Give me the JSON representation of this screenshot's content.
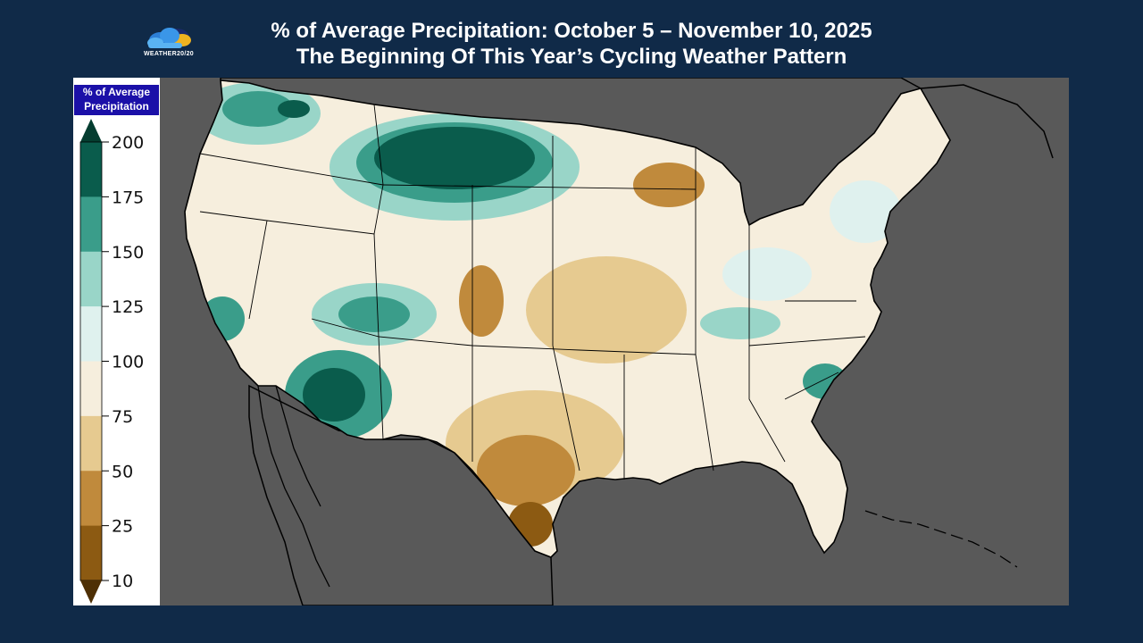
{
  "header": {
    "title_line1": "% of Average Precipitation: October 5 – November 10, 2025",
    "title_line2": "The Beginning Of This Year’s Cycling Weather Pattern",
    "logo_text": "WEATHER20/20"
  },
  "legend": {
    "title_line1": "% of Average",
    "title_line2": "Precipitation",
    "ticks": [
      "200",
      "175",
      "150",
      "125",
      "100",
      "75",
      "50",
      "25",
      "10"
    ],
    "colors": [
      "#0a5c4c",
      "#3a9d8a",
      "#99d5c8",
      "#dff1ee",
      "#f6eedd",
      "#e6ca90",
      "#c08a3c",
      "#8c5a12"
    ],
    "top_arrow_color": "#053d30",
    "bottom_arrow_color": "#4e2f05"
  },
  "map": {
    "background_color": "#595959",
    "land_outline_color": "#000000",
    "region": "Contiguous United States"
  }
}
